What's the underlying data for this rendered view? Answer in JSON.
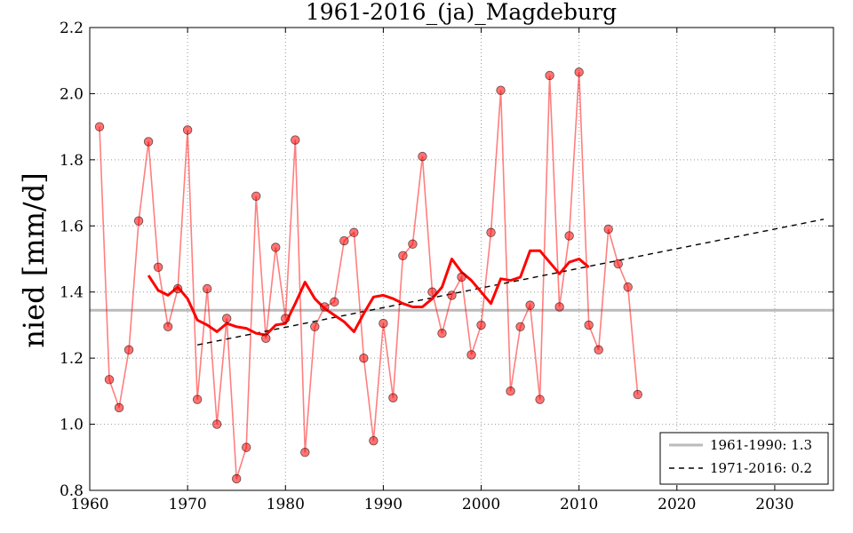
{
  "chart_data": {
    "type": "line",
    "title": "1961-2016_(ja)_Magdeburg",
    "xlabel": "",
    "ylabel": "nied [mm/d]",
    "xlim": [
      1960,
      2036
    ],
    "ylim": [
      0.8,
      2.2
    ],
    "xticks": [
      1960,
      1970,
      1980,
      1990,
      2000,
      2010,
      2020,
      2030
    ],
    "yticks": [
      0.8,
      1.0,
      1.2,
      1.4,
      1.6,
      1.8,
      2.0,
      2.2
    ],
    "grid": true,
    "legend_position": "bottom-right",
    "colors": {
      "annual": "#ff0000",
      "marker_edge": "#000000",
      "moving_average": "#ff0000",
      "reference": "#bbbbbb",
      "trend": "#000000"
    },
    "series": [
      {
        "name": "annual",
        "x": [
          1961,
          1962,
          1963,
          1964,
          1965,
          1966,
          1967,
          1968,
          1969,
          1970,
          1971,
          1972,
          1973,
          1974,
          1975,
          1976,
          1977,
          1978,
          1979,
          1980,
          1981,
          1982,
          1983,
          1984,
          1985,
          1986,
          1987,
          1988,
          1989,
          1990,
          1991,
          1992,
          1993,
          1994,
          1995,
          1996,
          1997,
          1998,
          1999,
          2000,
          2001,
          2002,
          2003,
          2004,
          2005,
          2006,
          2007,
          2008,
          2009,
          2010,
          2011,
          2012,
          2013,
          2014,
          2015,
          2016
        ],
        "values": [
          1.9,
          1.135,
          1.05,
          1.225,
          1.615,
          1.855,
          1.475,
          1.295,
          1.41,
          1.89,
          1.075,
          1.41,
          1.0,
          1.32,
          0.835,
          0.93,
          1.69,
          1.26,
          1.535,
          1.32,
          1.86,
          0.915,
          1.295,
          1.355,
          1.37,
          1.555,
          1.58,
          1.2,
          0.95,
          1.305,
          1.08,
          1.51,
          1.545,
          1.81,
          1.4,
          1.275,
          1.39,
          1.445,
          1.21,
          1.3,
          1.58,
          2.01,
          1.1,
          1.295,
          1.36,
          1.075,
          2.055,
          1.355,
          1.57,
          2.065,
          1.3,
          1.225,
          1.59,
          1.485,
          1.415,
          1.09
        ]
      },
      {
        "name": "moving-average",
        "x": [
          1966,
          1967,
          1968,
          1969,
          1970,
          1971,
          1972,
          1973,
          1974,
          1975,
          1976,
          1977,
          1978,
          1979,
          1980,
          1981,
          1982,
          1983,
          1984,
          1985,
          1986,
          1987,
          1988,
          1989,
          1990,
          1991,
          1992,
          1993,
          1994,
          1995,
          1996,
          1997,
          1998,
          1999,
          2000,
          2001,
          2002,
          2003,
          2004,
          2005,
          2006,
          2007,
          2008,
          2009,
          2010,
          2011
        ],
        "values": [
          1.45,
          1.405,
          1.39,
          1.415,
          1.38,
          1.315,
          1.3,
          1.28,
          1.305,
          1.295,
          1.29,
          1.275,
          1.27,
          1.3,
          1.305,
          1.365,
          1.43,
          1.38,
          1.35,
          1.33,
          1.31,
          1.28,
          1.335,
          1.385,
          1.39,
          1.38,
          1.365,
          1.355,
          1.355,
          1.38,
          1.415,
          1.5,
          1.46,
          1.435,
          1.4,
          1.365,
          1.44,
          1.435,
          1.445,
          1.525,
          1.525,
          1.49,
          1.455,
          1.49,
          1.5,
          1.475
        ]
      },
      {
        "name": "1961-1990: 1.3",
        "x": [
          1960,
          2036
        ],
        "values": [
          1.345,
          1.345
        ]
      },
      {
        "name": "1971-2016: 0.2",
        "x": [
          1971,
          2035
        ],
        "values": [
          1.24,
          1.62
        ]
      }
    ],
    "legend": [
      {
        "label": "1961-1990: 1.3",
        "style": "solid-gray"
      },
      {
        "label": "1971-2016: 0.2",
        "style": "dashed-black"
      }
    ]
  }
}
